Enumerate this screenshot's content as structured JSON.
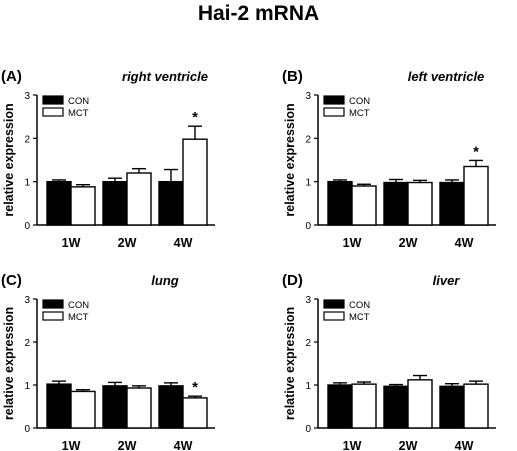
{
  "figure_title": "Hai-2 mRNA",
  "colors": {
    "con": "#000000",
    "mct": "#ffffff",
    "axis": "#000000"
  },
  "chart_data": [
    {
      "type": "bar",
      "panel_label": "(A)",
      "title": "right ventricle",
      "ylabel": "relative expression",
      "categories": [
        "1W",
        "2W",
        "4W"
      ],
      "ylim": [
        0,
        3
      ],
      "yticks": [
        0,
        1,
        2,
        3
      ],
      "legend": "top-left",
      "series": [
        {
          "name": "CON",
          "values": [
            1.0,
            1.0,
            1.0
          ],
          "errors": [
            0.04,
            0.08,
            0.28
          ]
        },
        {
          "name": "MCT",
          "values": [
            0.88,
            1.2,
            1.98
          ],
          "errors": [
            0.05,
            0.1,
            0.3
          ]
        }
      ],
      "annotations": [
        {
          "category": "4W",
          "series": "MCT",
          "text": "*"
        }
      ]
    },
    {
      "type": "bar",
      "panel_label": "(B)",
      "title": "left ventricle",
      "ylabel": "relative expression",
      "categories": [
        "1W",
        "2W",
        "4W"
      ],
      "ylim": [
        0,
        3
      ],
      "yticks": [
        0,
        1,
        2,
        3
      ],
      "legend": "top-left",
      "series": [
        {
          "name": "CON",
          "values": [
            1.0,
            0.98,
            0.98
          ],
          "errors": [
            0.04,
            0.07,
            0.06
          ]
        },
        {
          "name": "MCT",
          "values": [
            0.9,
            0.98,
            1.35
          ],
          "errors": [
            0.04,
            0.05,
            0.14
          ]
        }
      ],
      "annotations": [
        {
          "category": "4W",
          "series": "MCT",
          "text": "*"
        }
      ]
    },
    {
      "type": "bar",
      "panel_label": "(C)",
      "title": "lung",
      "ylabel": "relative expression",
      "categories": [
        "1W",
        "2W",
        "4W"
      ],
      "ylim": [
        0,
        3
      ],
      "yticks": [
        0,
        1,
        2,
        3
      ],
      "legend": "top-left",
      "series": [
        {
          "name": "CON",
          "values": [
            1.02,
            0.98,
            0.98
          ],
          "errors": [
            0.07,
            0.08,
            0.07
          ]
        },
        {
          "name": "MCT",
          "values": [
            0.85,
            0.93,
            0.7
          ],
          "errors": [
            0.04,
            0.05,
            0.04
          ]
        }
      ],
      "annotations": [
        {
          "category": "4W",
          "series": "MCT",
          "text": "*"
        }
      ]
    },
    {
      "type": "bar",
      "panel_label": "(D)",
      "title": "liver",
      "ylabel": "relative expression",
      "categories": [
        "1W",
        "2W",
        "4W"
      ],
      "ylim": [
        0,
        3
      ],
      "yticks": [
        0,
        1,
        2,
        3
      ],
      "legend": "top-left",
      "series": [
        {
          "name": "CON",
          "values": [
            1.0,
            0.97,
            0.97
          ],
          "errors": [
            0.05,
            0.04,
            0.06
          ]
        },
        {
          "name": "MCT",
          "values": [
            1.02,
            1.12,
            1.02
          ],
          "errors": [
            0.05,
            0.1,
            0.07
          ]
        }
      ],
      "annotations": []
    }
  ]
}
